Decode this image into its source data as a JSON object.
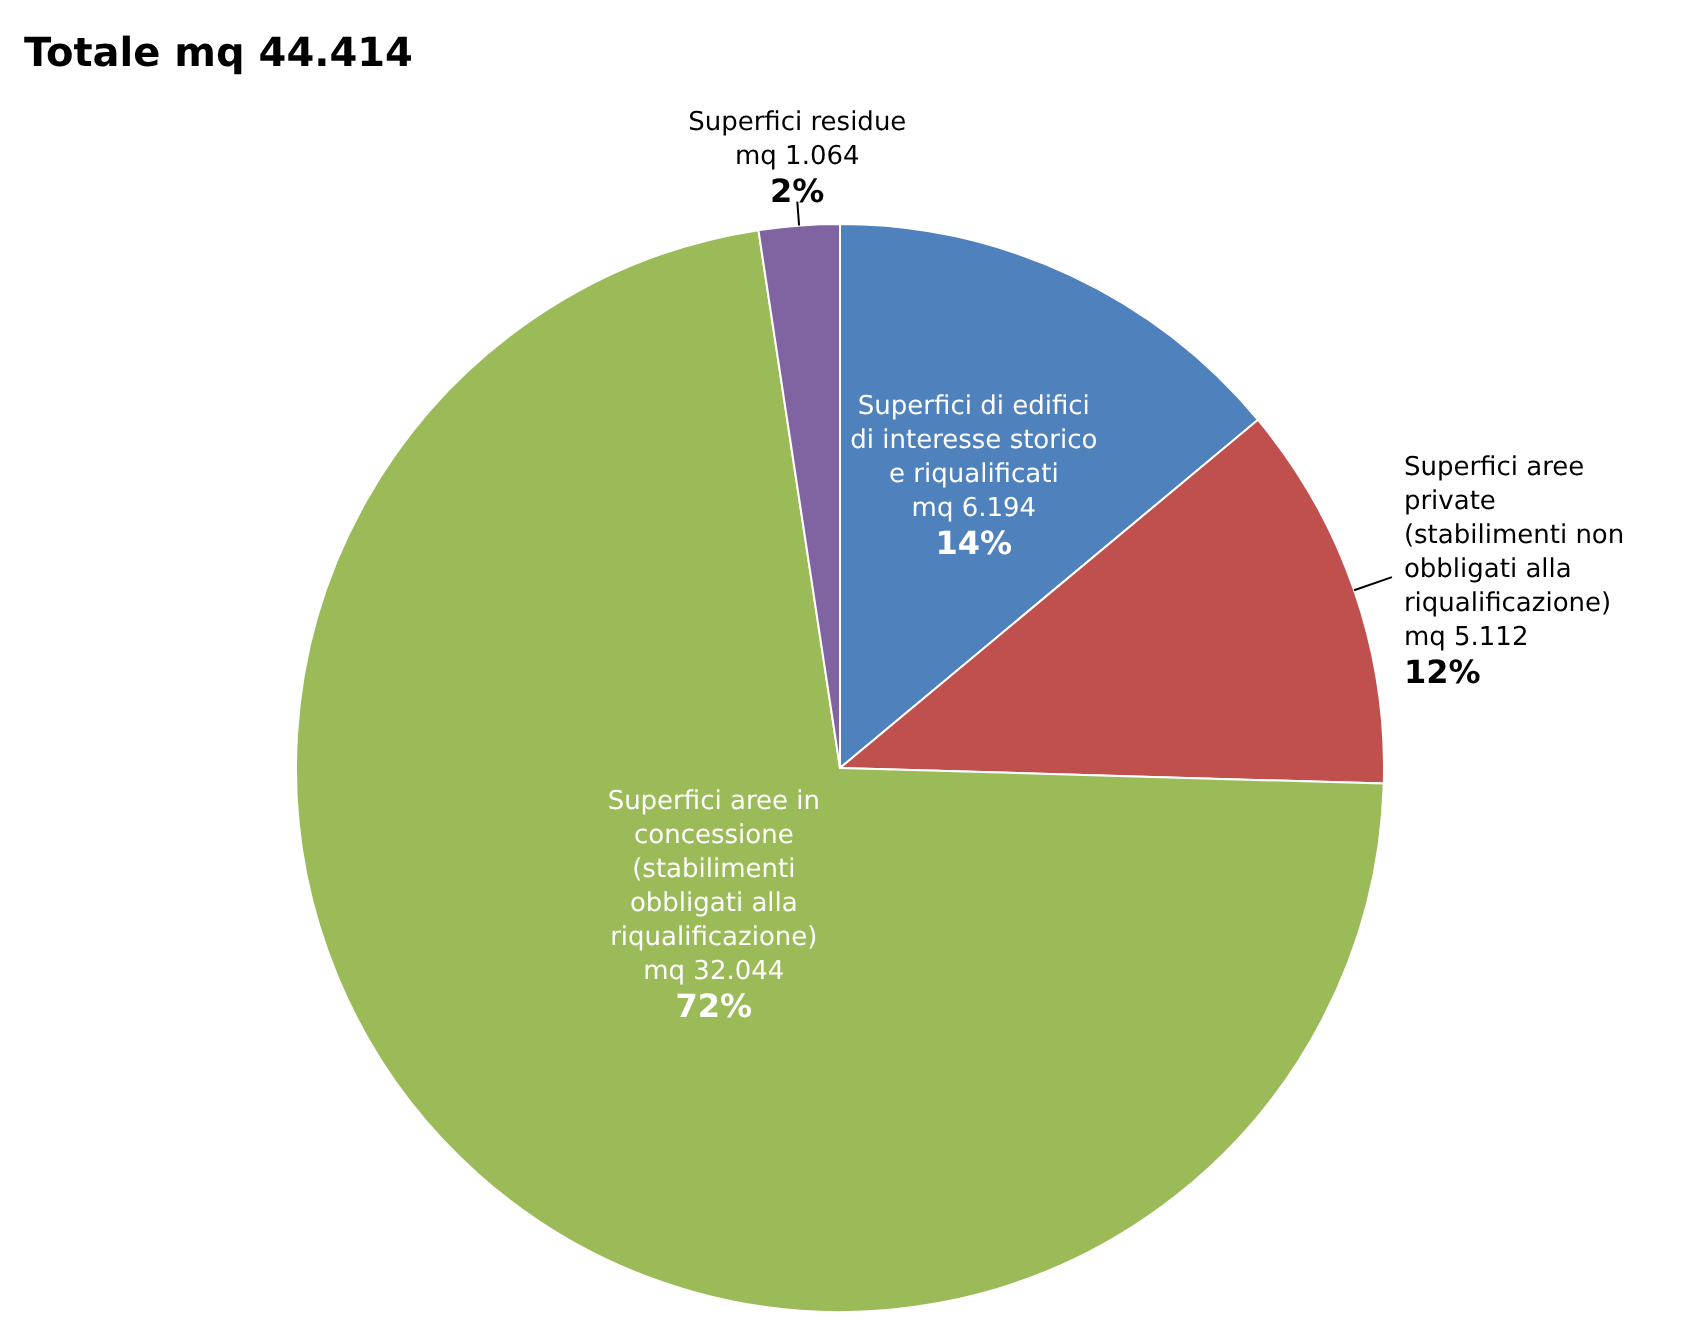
{
  "chart_data": {
    "type": "pie",
    "title": "Totale mq 44.414",
    "categories": [
      "Superfici di edifici\ndi interesse storico\ne riqualificati",
      "Superfici aree\nprivate\n(stabilimenti non\nobbligati alla\nriqualificazione)",
      "Superfici aree in\nconcessione\n(stabilimenti\nobbligati alla\nriqualificazione)",
      "Superfici residue"
    ],
    "values": [
      6194,
      5112,
      32044,
      1064
    ],
    "colors": [
      "#4f81bd",
      "#c0504d",
      "#9bbb59",
      "#8064a2"
    ],
    "value_labels": [
      "mq 6.194\n14%",
      "mq 5.112\n12%",
      "mq 32.044\n72%",
      "mq 1.064\n2%"
    ]
  }
}
